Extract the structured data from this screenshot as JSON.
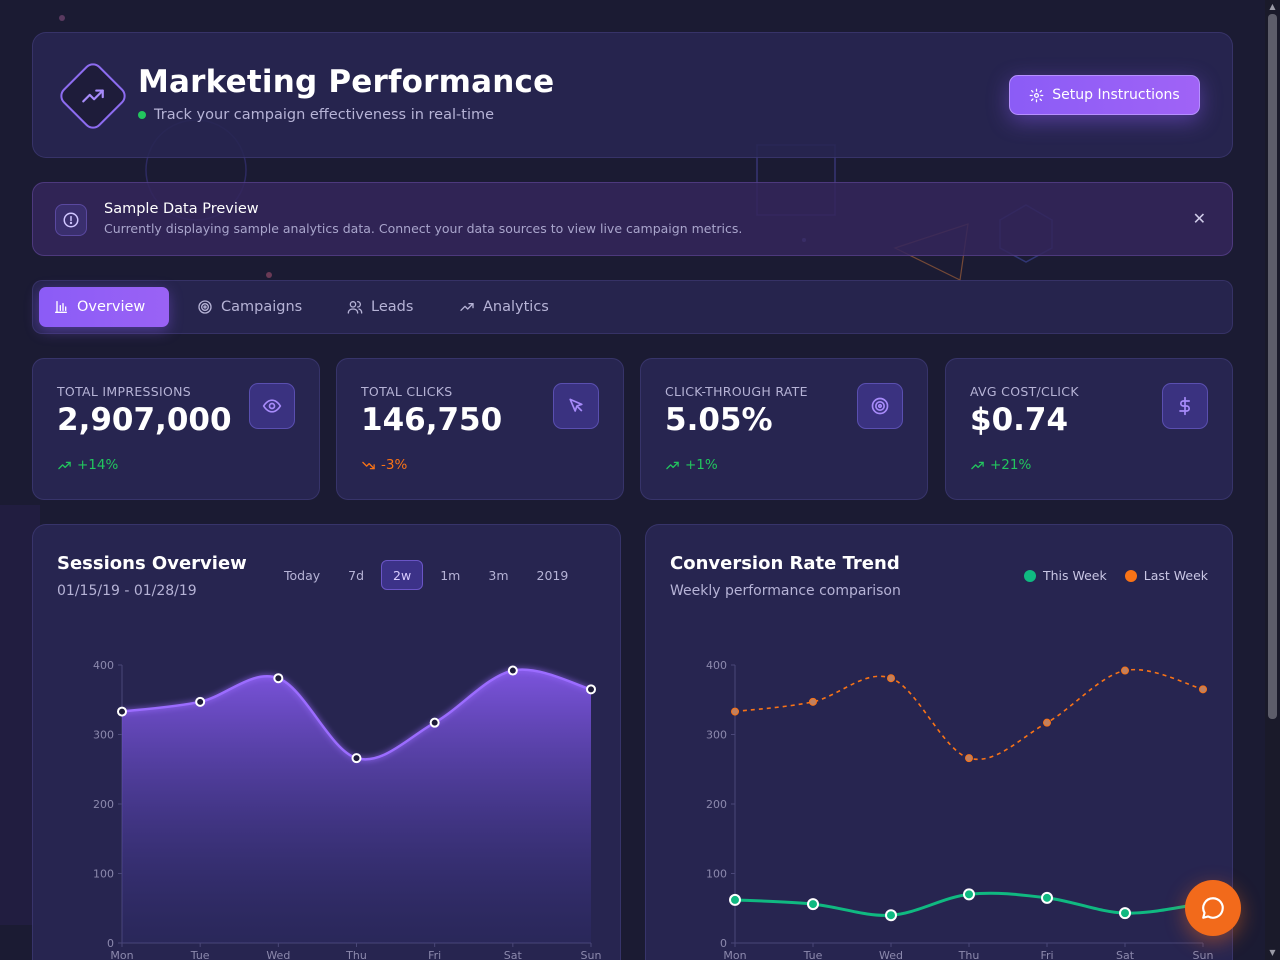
{
  "header": {
    "title": "Marketing Performance",
    "subtitle": "Track your campaign effectiveness in real-time",
    "setup_label": "Setup Instructions"
  },
  "banner": {
    "title": "Sample Data Preview",
    "description": "Currently displaying sample analytics data. Connect your data sources to view live campaign metrics.",
    "close_label": "✕"
  },
  "tabs": [
    {
      "label": "Overview",
      "icon": "bar-chart-icon",
      "active": true
    },
    {
      "label": "Campaigns",
      "icon": "target-icon",
      "active": false
    },
    {
      "label": "Leads",
      "icon": "users-icon",
      "active": false
    },
    {
      "label": "Analytics",
      "icon": "trending-up-icon",
      "active": false
    }
  ],
  "stats": [
    {
      "label": "TOTAL IMPRESSIONS",
      "value": "2,907,000",
      "change": "+14%",
      "direction": "up",
      "icon": "eye-icon"
    },
    {
      "label": "TOTAL CLICKS",
      "value": "146,750",
      "change": "-3%",
      "direction": "down",
      "icon": "cursor-icon"
    },
    {
      "label": "CLICK-THROUGH RATE",
      "value": "5.05%",
      "change": "+1%",
      "direction": "up",
      "icon": "target-icon"
    },
    {
      "label": "AVG COST/CLICK",
      "value": "$0.74",
      "change": "+21%",
      "direction": "up",
      "icon": "dollar-icon"
    }
  ],
  "sessions": {
    "title": "Sessions Overview",
    "date_range": "01/15/19 - 01/28/19",
    "ranges": [
      "Today",
      "7d",
      "2w",
      "1m",
      "3m",
      "2019"
    ],
    "active_range": "2w"
  },
  "conversion": {
    "title": "Conversion Rate Trend",
    "subtitle": "Weekly performance comparison",
    "legend": [
      {
        "label": "This Week",
        "color": "#10b981"
      },
      {
        "label": "Last Week",
        "color": "#f97316"
      }
    ]
  },
  "chart_data": [
    {
      "type": "area",
      "title": "Sessions Overview",
      "categories": [
        "Mon",
        "Tue",
        "Wed",
        "Thu",
        "Fri",
        "Sat",
        "Sun"
      ],
      "values": [
        333,
        347,
        381,
        266,
        317,
        392,
        365
      ],
      "ylim": [
        0,
        400
      ],
      "yticks": [
        0,
        100,
        200,
        300,
        400
      ],
      "color": "#8b5cf6",
      "grid": false
    },
    {
      "type": "line",
      "title": "Conversion Rate Trend",
      "categories": [
        "Mon",
        "Tue",
        "Wed",
        "Thu",
        "Fri",
        "Sat",
        "Sun"
      ],
      "series": [
        {
          "name": "This Week",
          "values": [
            62,
            56,
            40,
            70,
            65,
            43,
            57
          ],
          "color": "#10b981",
          "style": "solid"
        },
        {
          "name": "Last Week",
          "values": [
            333,
            347,
            381,
            266,
            317,
            392,
            365
          ],
          "color": "#f97316",
          "style": "dashed"
        }
      ],
      "ylim": [
        0,
        400
      ],
      "yticks": [
        0,
        100,
        200,
        300,
        400
      ],
      "legend": "top-right",
      "grid": false
    }
  ]
}
